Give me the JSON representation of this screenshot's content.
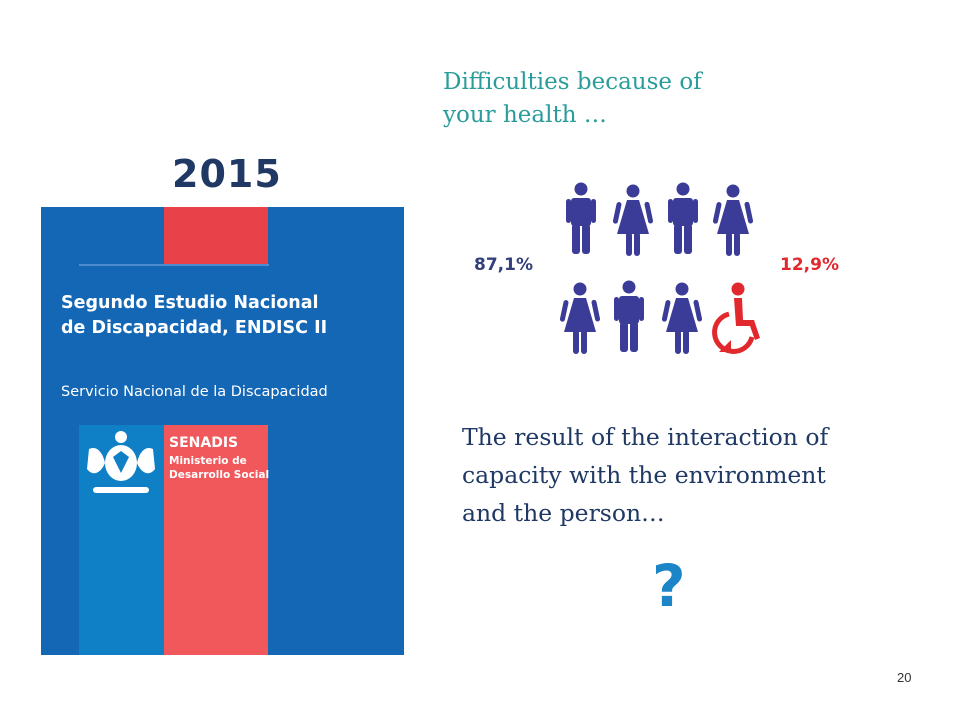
{
  "slide": {
    "year": "2015",
    "cover": {
      "title": "Segundo Estudio Nacional\nde Discapacidad, ENDISC II",
      "subtitle": "Servicio Nacional de la Discapacidad",
      "brand_name": "SENADIS",
      "brand_sub": "Ministerio de\nDesarrollo Social",
      "colors": {
        "blue": "#1467b5",
        "red": "#e8414a"
      }
    },
    "question": "Difficulties because of\nyour health …",
    "stat_without_disability": "87,1%",
    "stat_with_disability": "12,9%",
    "icons": [
      "man-icon",
      "woman-icon",
      "man-icon",
      "woman-icon",
      "woman-icon",
      "man-icon",
      "woman-icon",
      "wheelchair-user-icon"
    ],
    "result_text": "The result of the interaction of\ncapacity with the environment\nand the person…",
    "question_mark": "?",
    "page_number": "20"
  }
}
